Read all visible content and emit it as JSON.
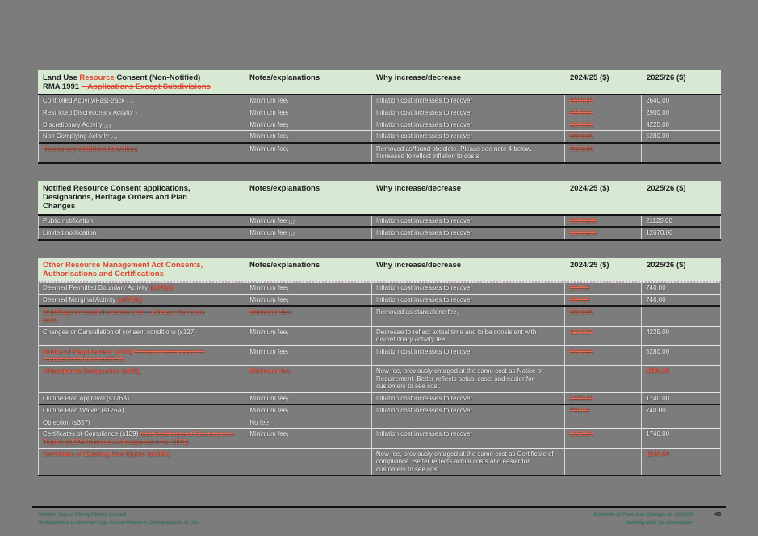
{
  "colors": {
    "page_bg": "#7c7c7c",
    "table_header_bg": "#d7e9d3",
    "accent_red": "#e0472f",
    "removed_red": "#ee6d55",
    "row_text": "#ffffff",
    "footer_teal": "#2f7f6f"
  },
  "columns": [
    "Notes/explanations",
    "Why increase/decrease",
    "2024/25 ($)",
    "2025/26 ($)"
  ],
  "tables": [
    {
      "title_parts": [
        {
          "text": "Land Use ",
          "style": "plain"
        },
        {
          "text": "Resource",
          "style": "red"
        },
        {
          "text": " Consent (Non-Notified)\nRMA 1991 ",
          "style": "plain"
        },
        {
          "text": "– Applications Except Subdivisions",
          "style": "red-strike"
        }
      ],
      "rows": [
        {
          "item": [
            {
              "text": "Controlled Activity/Fast-track ₂,₃",
              "style": "plain"
            }
          ],
          "notes": [
            {
              "text": "Minimum fee₁",
              "style": "plain"
            }
          ],
          "why": "Inflation cost increases to recover",
          "old": "2500.00",
          "new": "2640.00",
          "new_style": "plain"
        },
        {
          "item": [
            {
              "text": "Restricted Discretionary Activity ₂",
              "style": "plain"
            }
          ],
          "notes": [
            {
              "text": "Minimum fee₁",
              "style": "plain"
            }
          ],
          "why": "Inflation cost increases to recover",
          "old": "2750.00",
          "new": "2900.00",
          "new_style": "plain"
        },
        {
          "item": [
            {
              "text": "Discretionary Activity ₂,₃",
              "style": "plain"
            }
          ],
          "notes": [
            {
              "text": "Minimum fee₁",
              "style": "plain"
            }
          ],
          "why": "Inflation cost increases to recover",
          "old": "4000.00",
          "new": "4225.00",
          "new_style": "plain"
        },
        {
          "item": [
            {
              "text": "Non Complying Activity ₂,₃",
              "style": "plain"
            }
          ],
          "notes": [
            {
              "text": "Minimum fee₁",
              "style": "plain"
            }
          ],
          "why": "Inflation cost increases to recover",
          "old": "5000.00",
          "new": "5280.00",
          "new_style": "plain",
          "sep": "dark"
        },
        {
          "item": [
            {
              "text": "Temporary Additional Dwelling",
              "style": "removed"
            }
          ],
          "notes": [
            {
              "text": "Minimum fee₁",
              "style": "plain"
            }
          ],
          "why": "Removed as/found obsolete. Please see note 4 below. Increased to reflect inflation to costs",
          "old": "7650.00",
          "new": "",
          "new_style": "plain"
        }
      ]
    },
    {
      "title_parts": [
        {
          "text": "Notified Resource Consent applications,\nDesignations, Heritage Orders and Plan\nChanges",
          "style": "plain"
        }
      ],
      "rows": [
        {
          "item": [
            {
              "text": "Public notification",
              "style": "plain"
            }
          ],
          "notes": [
            {
              "text": "Minimum fee ₁,₂",
              "style": "plain"
            }
          ],
          "why": "Inflation cost increases to recover",
          "old": "20000.00",
          "new": "21120.00",
          "new_style": "plain",
          "sep": "dark"
        },
        {
          "item": [
            {
              "text": "Limited notification",
              "style": "plain"
            }
          ],
          "notes": [
            {
              "text": "Minimum fee ₁,₂",
              "style": "plain"
            }
          ],
          "why": "Inflation cost increases to recover",
          "old": "12000.00",
          "new": "12670.00",
          "new_style": "plain"
        }
      ]
    },
    {
      "header_divider": "dotted-pink",
      "gap": "large",
      "title_parts": [
        {
          "text": "Other Resource Management Act Consents,\nAuthorisations and Certifications",
          "style": "red"
        }
      ],
      "rows": [
        {
          "item": [
            {
              "text": "Deemed Permitted Boundary Activity ",
              "style": "plain"
            },
            {
              "text": "(s87BA)",
              "style": "red"
            }
          ],
          "notes": [
            {
              "text": "Minimum fee₁",
              "style": "plain"
            }
          ],
          "why": "Inflation cost increases to recover",
          "old": "700.00",
          "new": "740.00",
          "new_style": "plain"
        },
        {
          "item": [
            {
              "text": "Deemed Marginal Activity ",
              "style": "plain"
            },
            {
              "text": "(s87BB)",
              "style": "red"
            }
          ],
          "notes": [
            {
              "text": "Minimum fee₁",
              "style": "plain"
            }
          ],
          "why": "Inflation cost increases to recover",
          "old": "700.00",
          "new": "740.00",
          "new_style": "plain",
          "sep": "dark"
        },
        {
          "item": [
            {
              "text": "Buildings in coastal erosion area – primary risk zone\n3.4.3",
              "style": "removed"
            }
          ],
          "notes": [
            {
              "text": "Minimum fee₁",
              "style": "removed"
            }
          ],
          "why": "Removed as standalone fee₁",
          "old": "5000.00",
          "new": "",
          "new_style": "plain"
        },
        {
          "item": [
            {
              "text": "Changes or Cancellation of consent conditions (s127)",
              "style": "plain"
            }
          ],
          "notes": [
            {
              "text": "Minimum fee₁",
              "style": "plain"
            }
          ],
          "why": "Decrease to reflect actual time and to be consistent with discretionary activity fee",
          "old": "4500.00",
          "new": "4225.00",
          "new_style": "plain"
        },
        {
          "item": [
            {
              "text": "Notice of Requirement (s168) ",
              "style": "red"
            },
            {
              "text": "Designations/notice of requirement (non-notified)",
              "style": "removed"
            }
          ],
          "notes": [
            {
              "text": "Minimum fee₁",
              "style": "plain"
            }
          ],
          "why": "Inflation cost increases to recover",
          "old": "5000.00",
          "new": "5280.00",
          "new_style": "plain"
        },
        {
          "item": [
            {
              "text": "Alteration to Designation (s181)",
              "style": "red"
            }
          ],
          "notes": [
            {
              "text": "Minimum fee₁",
              "style": "red"
            }
          ],
          "why": "New fee, previously charged at the same cost as Notice of Requirement. Better reflects actual costs and easier for customers to see cost.",
          "old": "",
          "new": "4500.00",
          "new_style": "red"
        },
        {
          "item": [
            {
              "text": "Outline Plan Approval (s176A)",
              "style": "plain"
            }
          ],
          "notes": [
            {
              "text": "Minimum fee₁",
              "style": "plain"
            }
          ],
          "why": "Inflation cost increases to recover",
          "old": "1650.00",
          "new": "1740.00",
          "new_style": "plain",
          "sep": "dark"
        },
        {
          "item": [
            {
              "text": "Outline Plan Waiver (s176A)",
              "style": "plain"
            }
          ],
          "notes": [
            {
              "text": "Minimum fee₁",
              "style": "plain"
            }
          ],
          "why": "Inflation cost increases to recover",
          "old": "700.00",
          "new": "740.00",
          "new_style": "plain"
        },
        {
          "item": [
            {
              "text": "Objection (s357)",
              "style": "plain"
            }
          ],
          "notes": [
            {
              "text": "No fee",
              "style": "plain"
            }
          ],
          "why": "",
          "old": "",
          "new": "",
          "new_style": "plain"
        },
        {
          "item": [
            {
              "text": "Certificates of Compliance (s139) ",
              "style": "plain"
            },
            {
              "text": "and Certificate of Existing Use Rights (s139A Resource Management Act 1991)",
              "style": "removed"
            }
          ],
          "notes": [
            {
              "text": "Minimum fee₁",
              "style": "plain"
            }
          ],
          "why": "Inflation cost increases to recover",
          "old": "1650.00",
          "new": "1740.00",
          "new_style": "plain"
        },
        {
          "item": [
            {
              "text": "Certificate of Existing Use Rights (s139A)",
              "style": "red"
            }
          ],
          "notes": [
            {
              "text": "",
              "style": "plain"
            }
          ],
          "why": "New fee, previously charged at the same cost as Certificate of compliance. Better reflects actual costs and easier for customers to see cost.",
          "old": "",
          "new": "1160.00",
          "new_style": "red"
        }
      ]
    }
  ],
  "footer": {
    "left_line1": "Western Bay of Plenty District Council",
    "left_line2": "Te Kaunihera a rohe mai i nga Kuri-a-Wharei ki Otamarakau ki te Uru",
    "right_line1": "Schedule of Fees and Charges for 2025/26",
    "right_line2": "Working draft for consultation",
    "page_number": "45"
  }
}
